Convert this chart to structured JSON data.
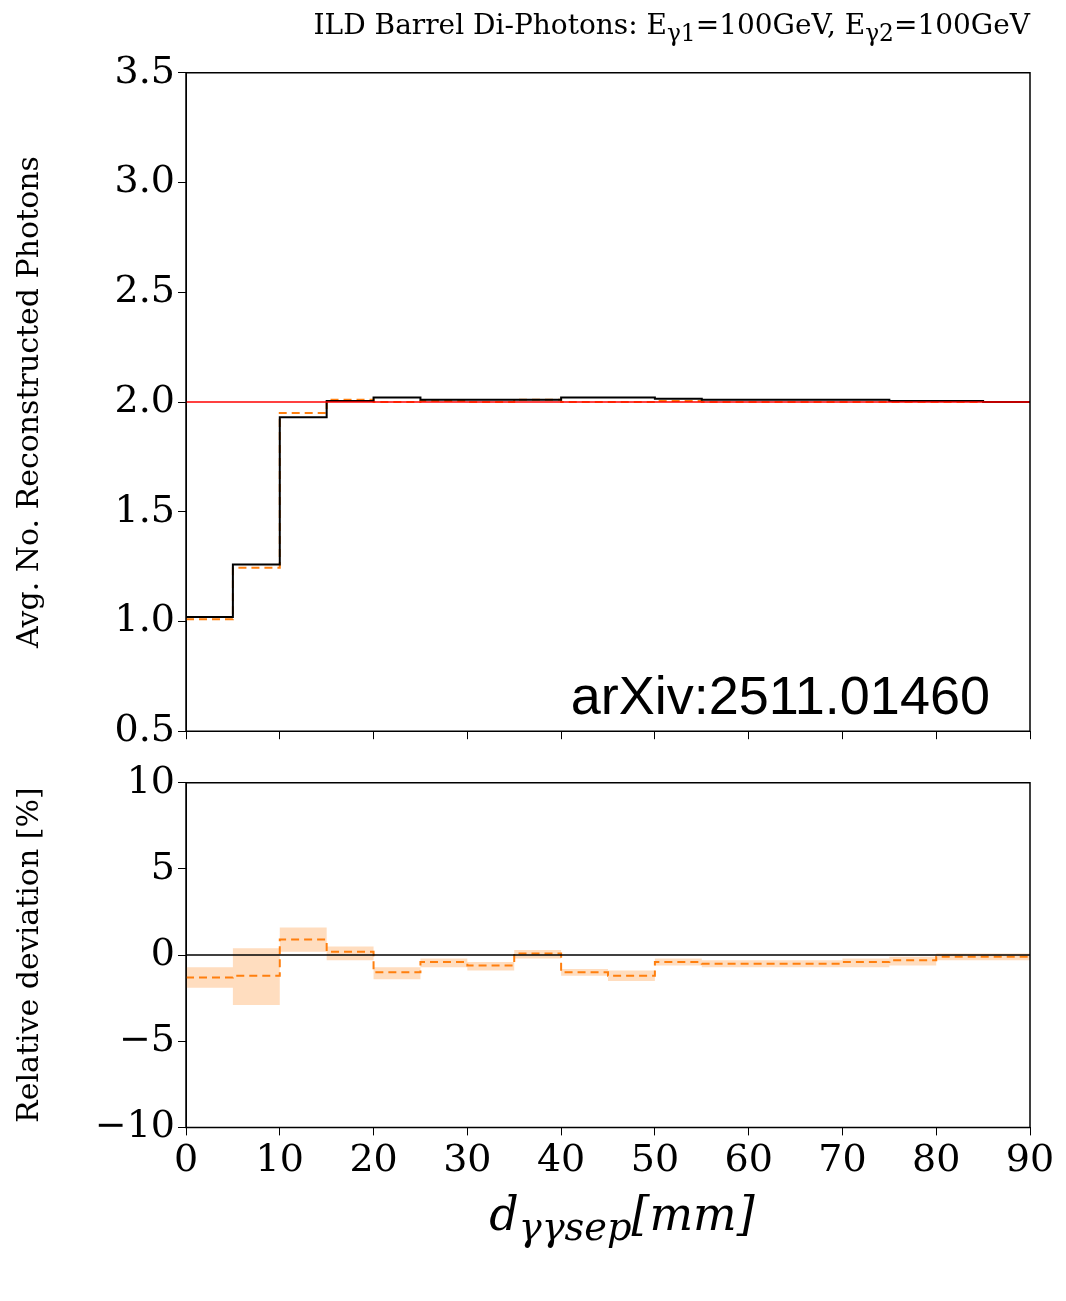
{
  "chart_data": [
    {
      "type": "histogram",
      "title": "ILD Barrel Di-Photons: E$_{γ1}$=100GeV, E$_{γ2}$=100GeV",
      "ylabel": "Avg. No. Reconstructed Photons",
      "bins": [
        0,
        5,
        10,
        15,
        20,
        25,
        30,
        35,
        40,
        45,
        50,
        55,
        60,
        65,
        70,
        75,
        80,
        85,
        90
      ],
      "series": [
        {
          "color": "#000000",
          "line_style": "solid",
          "values": [
            1.02,
            1.26,
            1.93,
            2.005,
            2.02,
            2.01,
            2.01,
            2.01,
            2.02,
            2.02,
            2.015,
            2.01,
            2.01,
            2.01,
            2.01,
            2.005,
            2.005,
            2.0
          ]
        },
        {
          "color": "#ff7f0e",
          "line_style": "dashed",
          "values": [
            1.01,
            1.245,
            1.95,
            2.01,
            2.0,
            2.005,
            2.0,
            2.01,
            2.0,
            2.0,
            2.005,
            2.0,
            2.0,
            2.0,
            2.0,
            2.0,
            2.0,
            2.0
          ]
        }
      ],
      "xlim": [
        0,
        90
      ],
      "xticks": [
        0,
        10,
        20,
        30,
        40,
        50,
        60,
        70,
        80,
        90
      ],
      "ylim": [
        0.5,
        3.5
      ],
      "yticks": [
        {
          "value": 0.5,
          "label": "0.5"
        },
        {
          "value": 1,
          "label": "1.0"
        },
        {
          "value": 1.5,
          "label": "1.5"
        },
        {
          "value": 2,
          "label": "2.0"
        },
        {
          "value": 2.5,
          "label": "2.5"
        },
        {
          "value": 3,
          "label": "3.0"
        },
        {
          "value": 3.5,
          "label": "3.5"
        }
      ],
      "ref_lines": [
        {
          "axis": "y",
          "value": 2,
          "color": "#ff0000"
        }
      ],
      "tick_labels": "y",
      "annotations": [
        "arXiv:2511.01460"
      ]
    },
    {
      "type": "step",
      "xlabel": "d$_{γγsep}$[mm]",
      "ylabel": "Relative deviation [%]",
      "x": [
        0,
        5,
        10,
        15,
        20,
        25,
        30,
        35,
        40,
        45,
        50,
        55,
        60,
        65,
        70,
        75,
        80,
        85,
        90
      ],
      "series": [
        {
          "color": "#ff7f0e",
          "line_style": "dashed",
          "values": [
            -1.3,
            -1.2,
            0.9,
            0.2,
            -1.0,
            -0.4,
            -0.6,
            0.1,
            -1.0,
            -1.2,
            -0.4,
            -0.5,
            -0.5,
            -0.5,
            -0.4,
            -0.3,
            -0.1,
            -0.1,
            -0.1
          ],
          "lower": [
            -1.9,
            -2.9,
            0.2,
            -0.3,
            -1.4,
            -0.7,
            -0.9,
            -0.2,
            -1.2,
            -1.5,
            -0.6,
            -0.7,
            -0.7,
            -0.7,
            -0.7,
            -0.6,
            -0.3,
            -0.3,
            -0.3
          ],
          "upper": [
            -0.7,
            0.4,
            1.6,
            0.5,
            -0.7,
            -0.2,
            -0.4,
            0.3,
            -0.8,
            -0.9,
            -0.2,
            -0.3,
            -0.3,
            -0.3,
            -0.2,
            -0.1,
            0.1,
            0.1,
            0.1
          ]
        }
      ],
      "xlim": [
        0,
        90
      ],
      "xticks": [
        0,
        10,
        20,
        30,
        40,
        50,
        60,
        70,
        80,
        90
      ],
      "ylim": [
        -10,
        10
      ],
      "yticks": [
        {
          "value": -10,
          "label": "−10"
        },
        {
          "value": -5,
          "label": "−5"
        },
        0,
        5,
        10
      ],
      "ref_lines": [
        {
          "axis": "y",
          "value": 0,
          "color": "#000000"
        }
      ]
    }
  ]
}
